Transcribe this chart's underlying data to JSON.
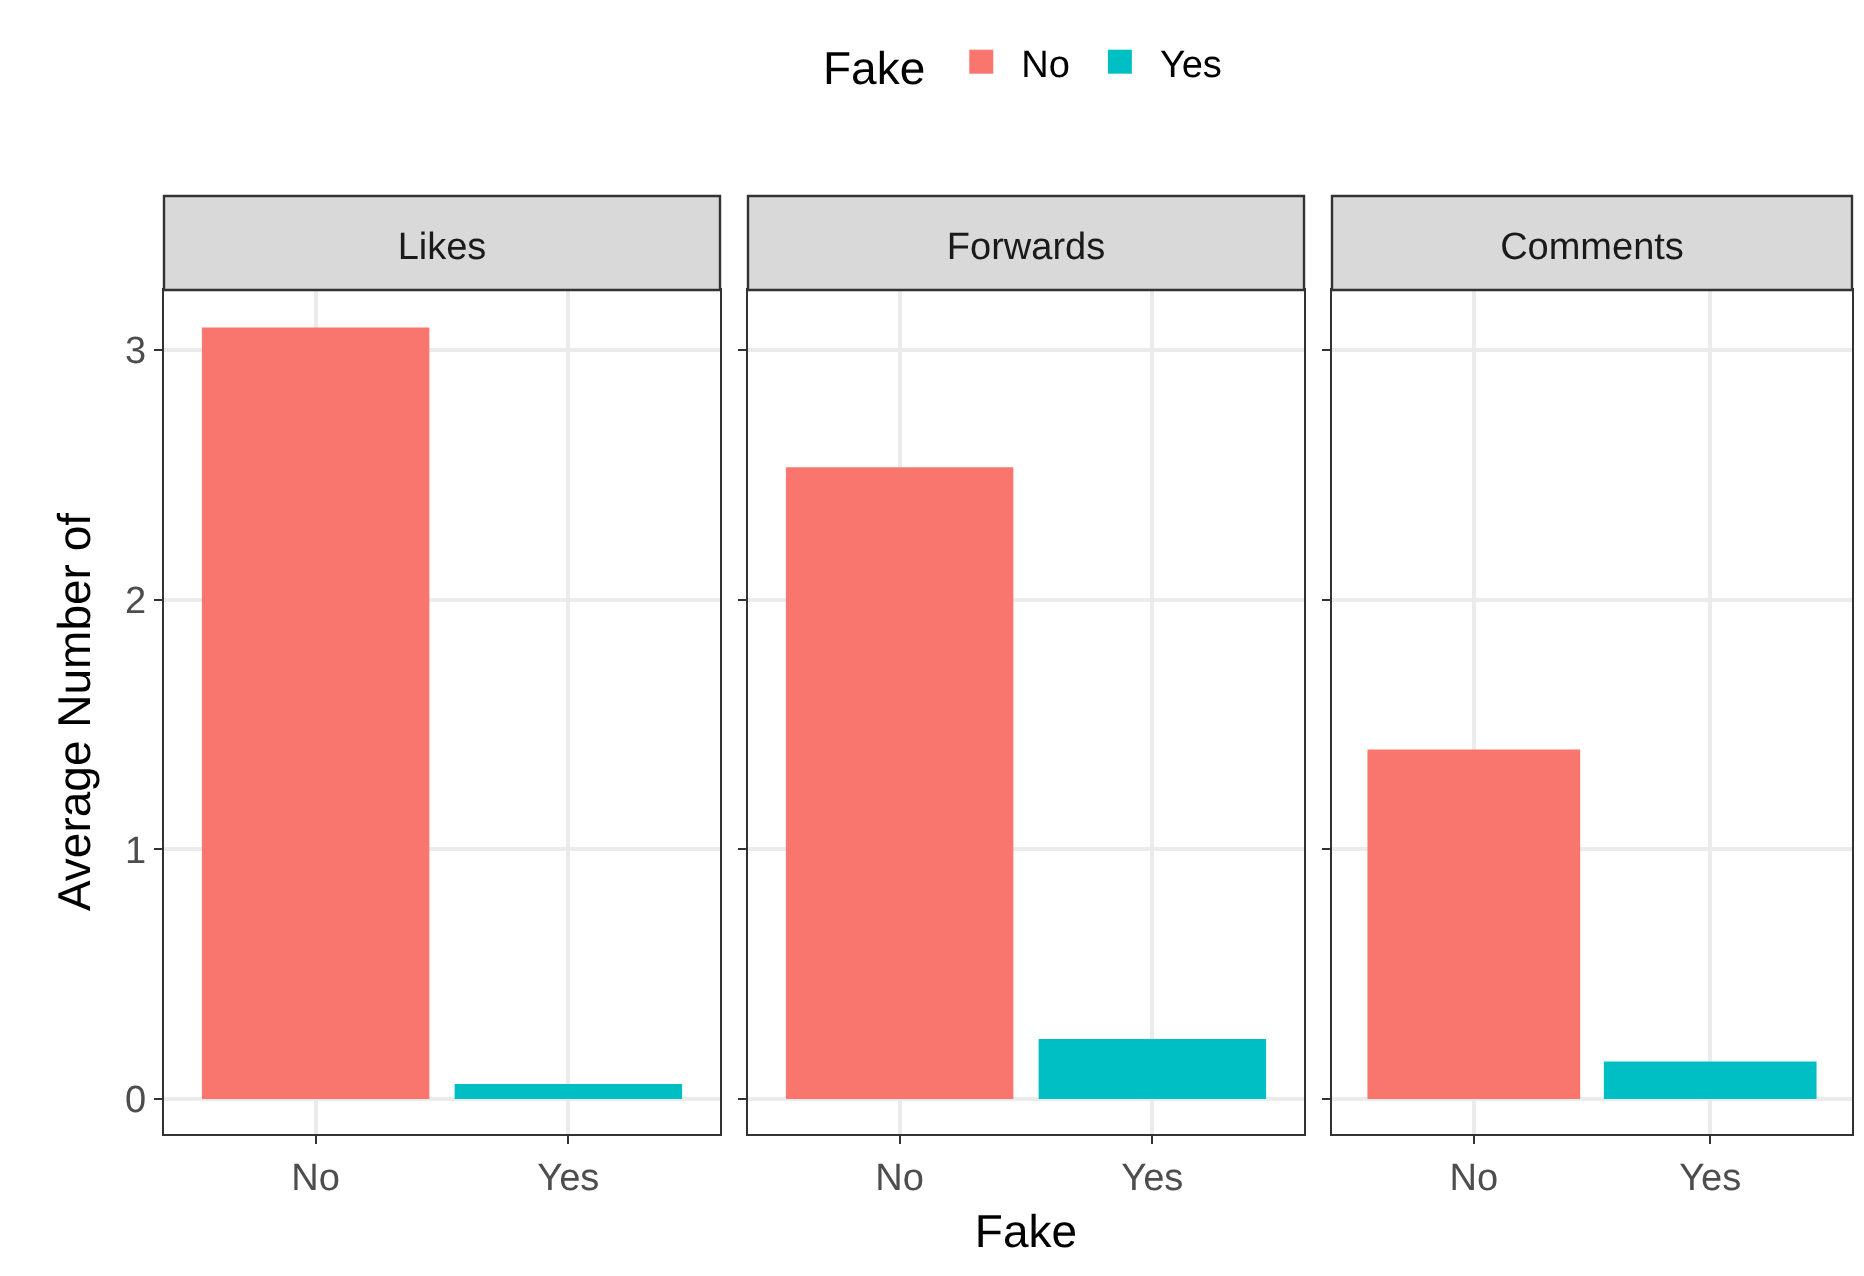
{
  "chart_data": [
    {
      "type": "bar",
      "title": "Likes",
      "ylabel": "Average Number of",
      "categories": [
        "No",
        "Yes"
      ],
      "series": [
        {
          "color": "#f8766d",
          "values": [
            3.09,
            null
          ]
        },
        {
          "color": "#00bfc4",
          "values": [
            null,
            0.06
          ]
        }
      ],
      "ylim": [
        -0.14,
        3.24
      ],
      "yticks": [
        0,
        1,
        2,
        3
      ],
      "grid": true,
      "legend": false
    },
    {
      "type": "bar",
      "title": "Forwards",
      "xlabel": "Fake",
      "legend_title": "Fake",
      "categories": [
        "No",
        "Yes"
      ],
      "series": [
        {
          "name": "No",
          "color": "#f8766d",
          "values": [
            2.53,
            null
          ]
        },
        {
          "name": "Yes",
          "color": "#00bfc4",
          "values": [
            null,
            0.24
          ]
        }
      ],
      "ylim": [
        -0.14,
        3.24
      ],
      "yticks": [
        0,
        1,
        2,
        3
      ],
      "grid": true,
      "legend": "top",
      "tick_labels": "x"
    },
    {
      "type": "bar",
      "title": "Comments",
      "categories": [
        "No",
        "Yes"
      ],
      "series": [
        {
          "color": "#f8766d",
          "values": [
            1.4,
            null
          ]
        },
        {
          "color": "#00bfc4",
          "values": [
            null,
            0.15
          ]
        }
      ],
      "ylim": [
        -0.14,
        3.24
      ],
      "yticks": [
        0,
        1,
        2,
        3
      ],
      "grid": true,
      "legend": false,
      "tick_labels": "x"
    }
  ]
}
